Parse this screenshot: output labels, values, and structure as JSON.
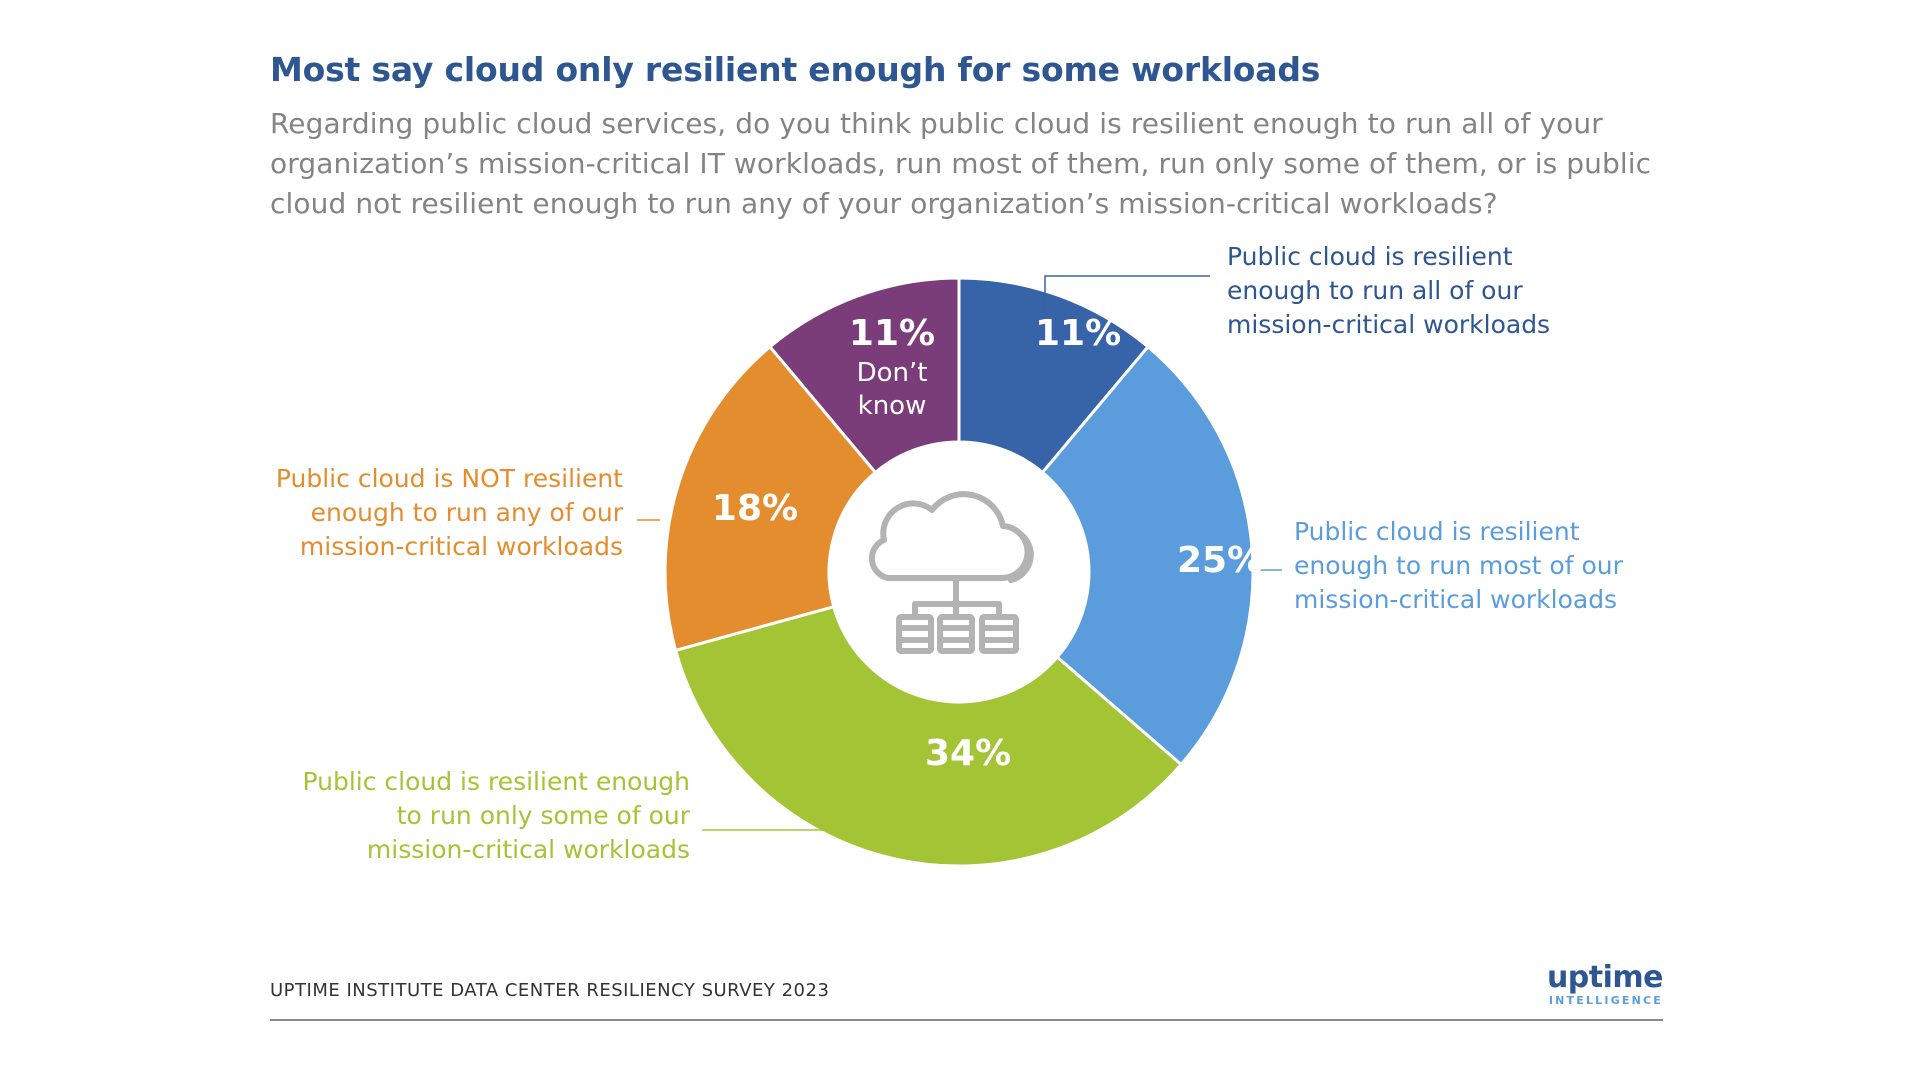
{
  "header": {
    "title": "Most say cloud only resilient enough for some workloads",
    "subtitle": "Regarding public cloud services, do you think public cloud is resilient enough to run all of your organization’s mission-critical IT workloads, run most of them, run only some of them, or is public cloud not resilient enough to run any of your organization’s mission-critical workloads?"
  },
  "chart_data": {
    "type": "pie",
    "variant": "donut",
    "title": "Most say cloud only resilient enough for some workloads",
    "center_icon": "cloud-network-icon",
    "slices": [
      {
        "id": "all",
        "value": 11,
        "display": "11%",
        "color": "#3763a8",
        "label": [
          "Public cloud is resilient",
          "enough to run all of our",
          "mission-critical workloads"
        ]
      },
      {
        "id": "most",
        "value": 25,
        "display": "25%",
        "color": "#5b9ddc",
        "label": [
          "Public cloud is resilient",
          "enough to run most of our",
          "mission-critical workloads"
        ]
      },
      {
        "id": "some",
        "value": 34,
        "display": "34%",
        "color": "#a3c535",
        "label": [
          "Public cloud is resilient enough",
          "to run only some of our",
          "mission-critical workloads"
        ]
      },
      {
        "id": "not",
        "value": 18,
        "display": "18%",
        "color": "#e38d2f",
        "label": [
          "Public cloud is NOT resilient",
          "enough to run any of our",
          "mission-critical workloads"
        ]
      },
      {
        "id": "dontknow",
        "value": 11,
        "display": "11%",
        "color": "#7b3c7a",
        "label": [
          "Don’t",
          "know"
        ]
      }
    ]
  },
  "footer": {
    "source": "UPTIME INSTITUTE DATA CENTER RESILIENCY SURVEY 2023",
    "logo_main": "uptime",
    "logo_sub": "INTELLIGENCE"
  }
}
